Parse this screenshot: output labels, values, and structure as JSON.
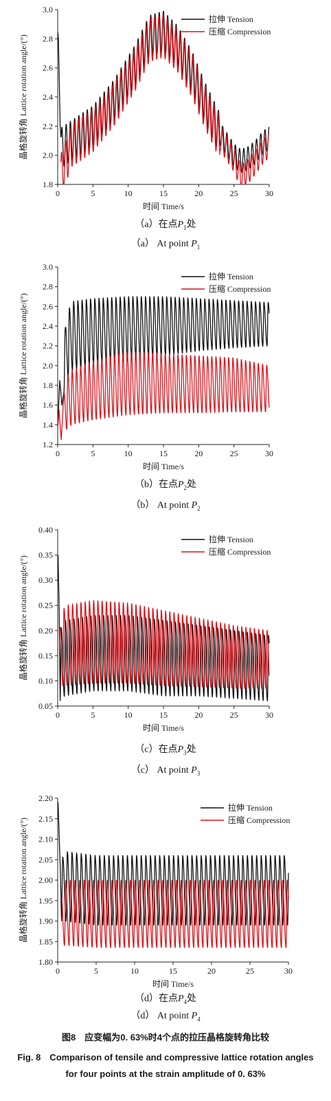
{
  "colors": {
    "tension": "#111111",
    "compression": "#d8141b",
    "axis": "#222222"
  },
  "legend": {
    "tension": "拉伸 Tension",
    "compression": "压缩 Compression"
  },
  "chart_data": [
    {
      "type": "line",
      "xlabel": "时间 Time/s",
      "ylabel": "晶格旋转角 Lattice rotation angle/(°)",
      "xlim": [
        0,
        30
      ],
      "ylim": [
        1.8,
        3.0
      ],
      "xticks": [
        "0",
        "5",
        "10",
        "15",
        "20",
        "25",
        "30"
      ],
      "yticks": [
        "1.8",
        "2.0",
        "2.2",
        "2.4",
        "2.6",
        "2.8",
        "3.0"
      ],
      "legend_position": "top-right",
      "series": [
        {
          "name": "拉伸 Tension",
          "x": [
            0,
            0.5,
            2,
            5,
            8,
            11,
            13,
            15,
            17,
            19,
            21,
            23,
            25,
            26,
            27,
            28,
            29,
            30
          ],
          "values": [
            2.85,
            2.05,
            2.1,
            2.2,
            2.38,
            2.62,
            2.82,
            2.85,
            2.75,
            2.58,
            2.35,
            2.15,
            2.0,
            1.96,
            1.98,
            2.02,
            2.08,
            2.12
          ]
        },
        {
          "name": "压缩 Compression",
          "x": [
            0.5,
            2,
            5,
            8,
            11,
            13,
            15,
            17,
            19,
            21,
            23,
            25,
            26,
            27,
            28,
            29,
            30
          ],
          "values": [
            1.9,
            2.1,
            2.2,
            2.38,
            2.62,
            2.82,
            2.85,
            2.75,
            2.58,
            2.35,
            2.15,
            2.0,
            1.88,
            1.92,
            1.98,
            2.05,
            2.1
          ]
        }
      ]
    },
    {
      "type": "line",
      "xlabel": "时间 Time/s",
      "ylabel": "晶格旋转角 Lattice rotation angle/(°)",
      "xlim": [
        0,
        30
      ],
      "ylim": [
        1.2,
        3.0
      ],
      "xticks": [
        "0",
        "5",
        "10",
        "15",
        "20",
        "25",
        "30"
      ],
      "yticks": [
        "1.2",
        "1.4",
        "1.6",
        "1.8",
        "2.0",
        "2.2",
        "2.4",
        "2.6",
        "2.8",
        "3.0"
      ],
      "legend_position": "top-right",
      "series": [
        {
          "name": "拉伸 Tension",
          "x": [
            0,
            0.5,
            1.2,
            2,
            5,
            10,
            15,
            20,
            25,
            30
          ],
          "values": [
            1.4,
            1.85,
            2.5,
            2.65,
            2.68,
            2.7,
            2.7,
            2.68,
            2.66,
            2.64
          ],
          "min_values": [
            1.4,
            1.6,
            1.85,
            1.95,
            2.0,
            2.05,
            2.1,
            2.15,
            2.18,
            2.2
          ]
        },
        {
          "name": "压缩 Compression",
          "x": [
            0,
            0.5,
            1.2,
            2,
            5,
            10,
            15,
            20,
            25,
            30
          ],
          "values": [
            1.35,
            1.55,
            1.9,
            1.95,
            2.05,
            2.15,
            2.12,
            2.1,
            2.08,
            2.0
          ],
          "min_values": [
            1.25,
            1.3,
            1.35,
            1.4,
            1.45,
            1.5,
            1.52,
            1.52,
            1.53,
            1.53
          ]
        }
      ]
    },
    {
      "type": "line",
      "xlabel": "时间 Time/s",
      "ylabel": "晶格旋转角 Lattice rotation angle/(°)",
      "xlim": [
        0,
        30
      ],
      "ylim": [
        0.05,
        0.4
      ],
      "xticks": [
        "0",
        "5",
        "10",
        "15",
        "20",
        "25",
        "30"
      ],
      "yticks": [
        "0.05",
        "0.10",
        "0.15",
        "0.20",
        "0.25",
        "0.30",
        "0.35",
        "0.40"
      ],
      "legend_position": "top-right",
      "series": [
        {
          "name": "拉伸 Tension",
          "x": [
            0,
            0.3,
            1,
            5,
            10,
            15,
            20,
            25,
            30
          ],
          "values": [
            0.35,
            0.2,
            0.22,
            0.23,
            0.23,
            0.22,
            0.21,
            0.2,
            0.19
          ],
          "min_values": [
            0.35,
            0.06,
            0.07,
            0.08,
            0.08,
            0.07,
            0.07,
            0.065,
            0.06
          ]
        },
        {
          "name": "压缩 Compression",
          "x": [
            0,
            0.3,
            1,
            5,
            10,
            15,
            20,
            25,
            30
          ],
          "values": [
            0.2,
            0.21,
            0.25,
            0.26,
            0.255,
            0.24,
            0.225,
            0.21,
            0.2
          ],
          "min_values": [
            0.1,
            0.09,
            0.09,
            0.095,
            0.095,
            0.09,
            0.088,
            0.085,
            0.085
          ]
        }
      ]
    },
    {
      "type": "line",
      "xlabel": "时间 Time/s",
      "ylabel": "晶格旋转角 Lattice rotation angle/(°)",
      "xlim": [
        0,
        30
      ],
      "ylim": [
        1.8,
        2.2
      ],
      "xticks": [
        "0",
        "5",
        "10",
        "15",
        "20",
        "25",
        "30"
      ],
      "yticks": [
        "1.80",
        "1.85",
        "1.90",
        "1.95",
        "2.00",
        "2.05",
        "2.10",
        "2.15",
        "2.20"
      ],
      "legend_position": "top-right",
      "series": [
        {
          "name": "拉伸 Tension",
          "x": [
            0,
            0.5,
            1,
            5,
            10,
            15,
            20,
            25,
            30
          ],
          "values": [
            2.19,
            2.05,
            2.07,
            2.06,
            2.06,
            2.06,
            2.06,
            2.06,
            2.06
          ],
          "min_values": [
            2.19,
            1.9,
            1.9,
            1.89,
            1.89,
            1.89,
            1.89,
            1.89,
            1.89
          ]
        },
        {
          "name": "压缩 Compression",
          "x": [
            0,
            0.5,
            1,
            5,
            10,
            15,
            20,
            25,
            30
          ],
          "values": [
            1.95,
            1.97,
            2.0,
            2.0,
            2.0,
            2.0,
            2.0,
            2.0,
            2.0
          ],
          "min_values": [
            1.85,
            1.84,
            1.84,
            1.835,
            1.835,
            1.835,
            1.835,
            1.835,
            1.835
          ]
        }
      ]
    }
  ],
  "captions": [
    {
      "zh_label": "（a）在点",
      "en_label": "（a） At point",
      "point": "P",
      "sub": "1",
      "zh_suffix": "处"
    },
    {
      "zh_label": "（b）在点",
      "en_label": "（b） At point",
      "point": "P",
      "sub": "2",
      "zh_suffix": "处"
    },
    {
      "zh_label": "（c）在点",
      "en_label": "（c） At point",
      "point": "P",
      "sub": "3",
      "zh_suffix": "处"
    },
    {
      "zh_label": "（d）在点",
      "en_label": "（d） At point",
      "point": "P",
      "sub": "4",
      "zh_suffix": "处"
    }
  ],
  "figure": {
    "zh": "图8　应变幅为0. 63%时4个点的拉压晶格旋转角比较",
    "en_line1": "Fig. 8　Comparison of tensile and compressive lattice rotation angles",
    "en_line2": "for four points at the strain amplitude of 0. 63%"
  }
}
